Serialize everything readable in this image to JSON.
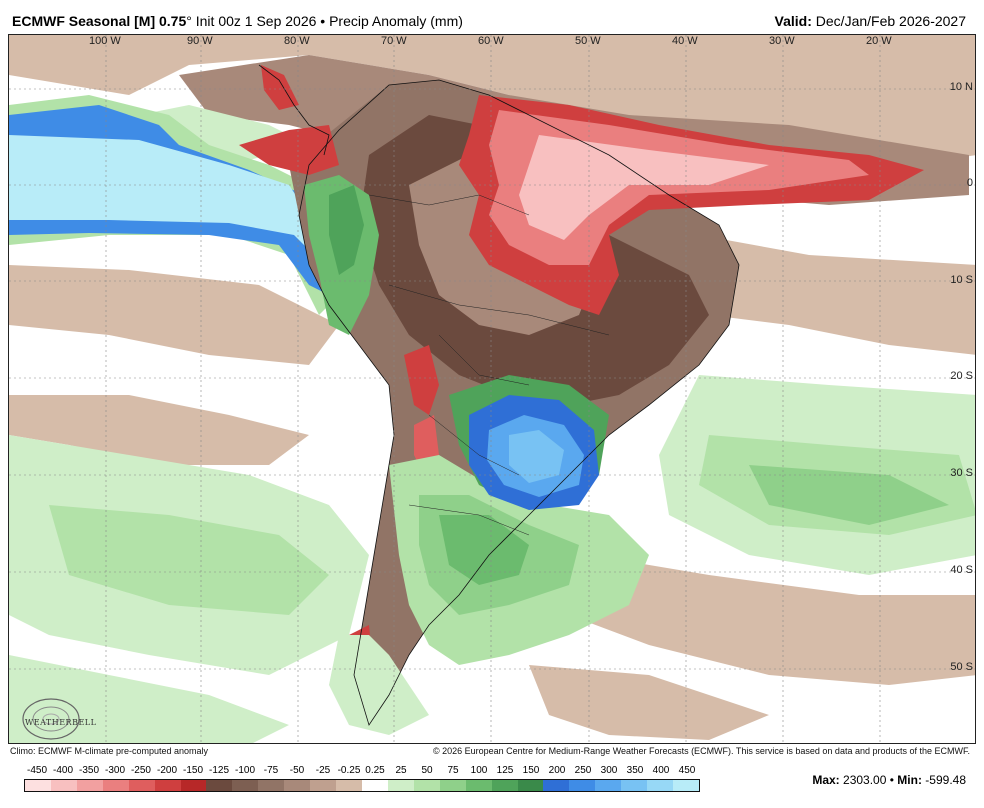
{
  "header": {
    "title_bold": "ECMWF Seasonal [M] 0.75",
    "title_rest": "° Init 00z 1 Sep 2026 • Precip Anomaly (mm)",
    "valid_label": "Valid:",
    "valid_value": "Dec/Jan/Feb 2026-2027"
  },
  "axes": {
    "lon_labels": [
      "100 W",
      "90 W",
      "80 W",
      "70 W",
      "60 W",
      "50 W",
      "40 W",
      "30 W",
      "20 W"
    ],
    "lat_labels": [
      "10 N",
      "0",
      "10 S",
      "20 S",
      "30 S",
      "40 S",
      "50 S"
    ]
  },
  "logo": {
    "text": "WEATHERBELL"
  },
  "footer": {
    "climo_note": "Climo: ECMWF M-climate pre-computed anomaly",
    "copyright": "© 2026 European Centre for Medium-Range Weather Forecasts (ECMWF). This service is based on data and products of the ECMWF."
  },
  "colorbar": {
    "labels": [
      "-450",
      "-400",
      "-350",
      "-300",
      "-250",
      "-200",
      "-150",
      "-125",
      "-100",
      "-75",
      "-50",
      "-25",
      "-0.25",
      "0.25",
      "25",
      "50",
      "75",
      "100",
      "125",
      "150",
      "200",
      "250",
      "300",
      "350",
      "400",
      "450"
    ],
    "colors": [
      "#fde0e0",
      "#f8c0c0",
      "#f2a0a0",
      "#ea7f7f",
      "#df5e5e",
      "#cf3f3f",
      "#b72828",
      "#6b4a3e",
      "#7d5f52",
      "#917466",
      "#a8897a",
      "#bfa08f",
      "#d6bca9",
      "#ffffff",
      "#cfeec8",
      "#b2e2a8",
      "#8fd08a",
      "#6bbb6e",
      "#4fa35a",
      "#3a8a4a",
      "#2f6fd6",
      "#3f8ce6",
      "#5aa8ef",
      "#78c2f3",
      "#97d8f6",
      "#b8ecf8"
    ]
  },
  "stats": {
    "max_label": "Max:",
    "max_value": "2303.00",
    "sep": "•",
    "min_label": "Min:",
    "min_value": "-599.48"
  }
}
